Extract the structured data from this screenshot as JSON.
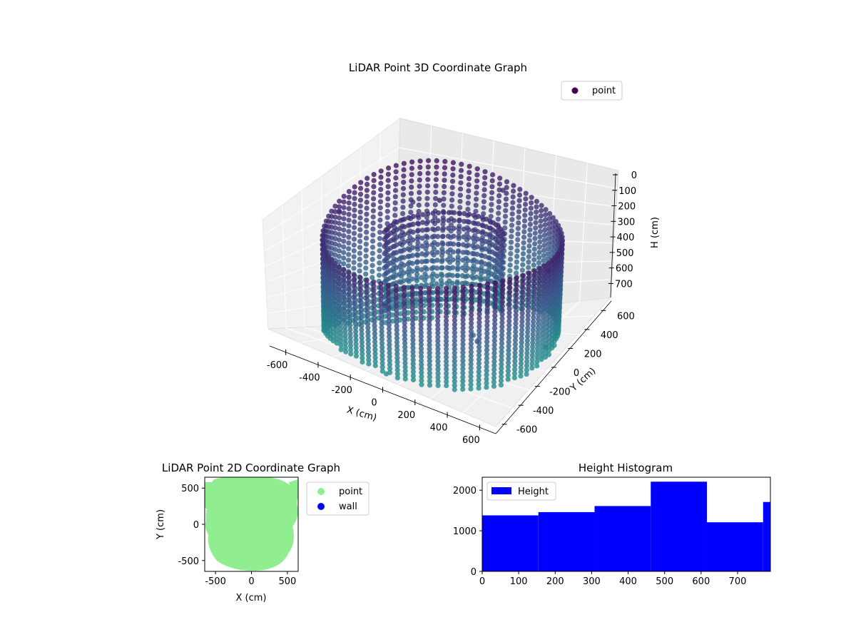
{
  "chart_data": [
    {
      "type": "scatter3d",
      "title": "LiDAR Point 3D Coordinate Graph",
      "xlabel": "X (cm)",
      "ylabel": "Y (cm)",
      "zlabel": "H (cm)",
      "xlim": [
        -700,
        700
      ],
      "ylim": [
        -700,
        700
      ],
      "zlim": [
        790,
        0
      ],
      "x_ticks": [
        -600,
        -400,
        -200,
        0,
        200,
        400,
        600
      ],
      "y_ticks": [
        -600,
        -400,
        -200,
        0,
        200,
        400,
        600
      ],
      "z_ticks": [
        0,
        100,
        200,
        300,
        400,
        500,
        600,
        700
      ],
      "colormap": [
        "#440154",
        "#3b528b",
        "#21918c"
      ],
      "legend": [
        {
          "label": "point",
          "color": "#440154"
        }
      ],
      "legend_position": "upper-right",
      "grid": true,
      "points_description": "cylindrical wall scan; points colored by height",
      "wall_radius_cm": 650,
      "sample_points": [
        {
          "x": -650,
          "y": 0,
          "h": 200
        },
        {
          "x": -650,
          "y": 0,
          "h": 700
        },
        {
          "x": 0,
          "y": 650,
          "h": 200
        },
        {
          "x": 0,
          "y": 650,
          "h": 700
        },
        {
          "x": 650,
          "y": 0,
          "h": 200
        },
        {
          "x": 650,
          "y": 0,
          "h": 700
        },
        {
          "x": 0,
          "y": -650,
          "h": 300
        },
        {
          "x": 0,
          "y": -650,
          "h": 780
        },
        {
          "x": -460,
          "y": 460,
          "h": 250
        },
        {
          "x": 460,
          "y": -460,
          "h": 450
        },
        {
          "x": 300,
          "y": -200,
          "h": 600
        },
        {
          "x": -200,
          "y": 300,
          "h": 150
        }
      ]
    },
    {
      "type": "scatter",
      "title": "LiDAR Point 2D Coordinate Graph",
      "xlabel": "X (cm)",
      "ylabel": "Y (cm)",
      "xlim": [
        -650,
        650
      ],
      "ylim": [
        -650,
        650
      ],
      "x_ticks": [
        -500,
        0,
        500
      ],
      "y_ticks": [
        -500,
        0,
        500
      ],
      "series": [
        {
          "name": "point",
          "color": "#90ee90",
          "region": "dense filled disk of points, radius ~600 cm"
        },
        {
          "name": "wall",
          "color": "#0000ff",
          "values": []
        }
      ],
      "legend_position": "outside-right"
    },
    {
      "type": "bar",
      "title": "Height Histogram",
      "xlabel": "",
      "ylabel": "",
      "legend": [
        {
          "label": "Height",
          "color": "#0000ff"
        }
      ],
      "legend_position": "upper-left",
      "bin_edges": [
        0,
        154,
        308,
        462,
        616,
        770,
        790
      ],
      "values": [
        1380,
        1460,
        1610,
        2210,
        1210,
        1710
      ],
      "xlim": [
        0,
        790
      ],
      "ylim": [
        0,
        2320
      ],
      "x_ticks": [
        0,
        100,
        200,
        300,
        400,
        500,
        600,
        700
      ],
      "y_ticks": [
        0,
        1000,
        2000
      ],
      "color": "#0000ff"
    }
  ]
}
